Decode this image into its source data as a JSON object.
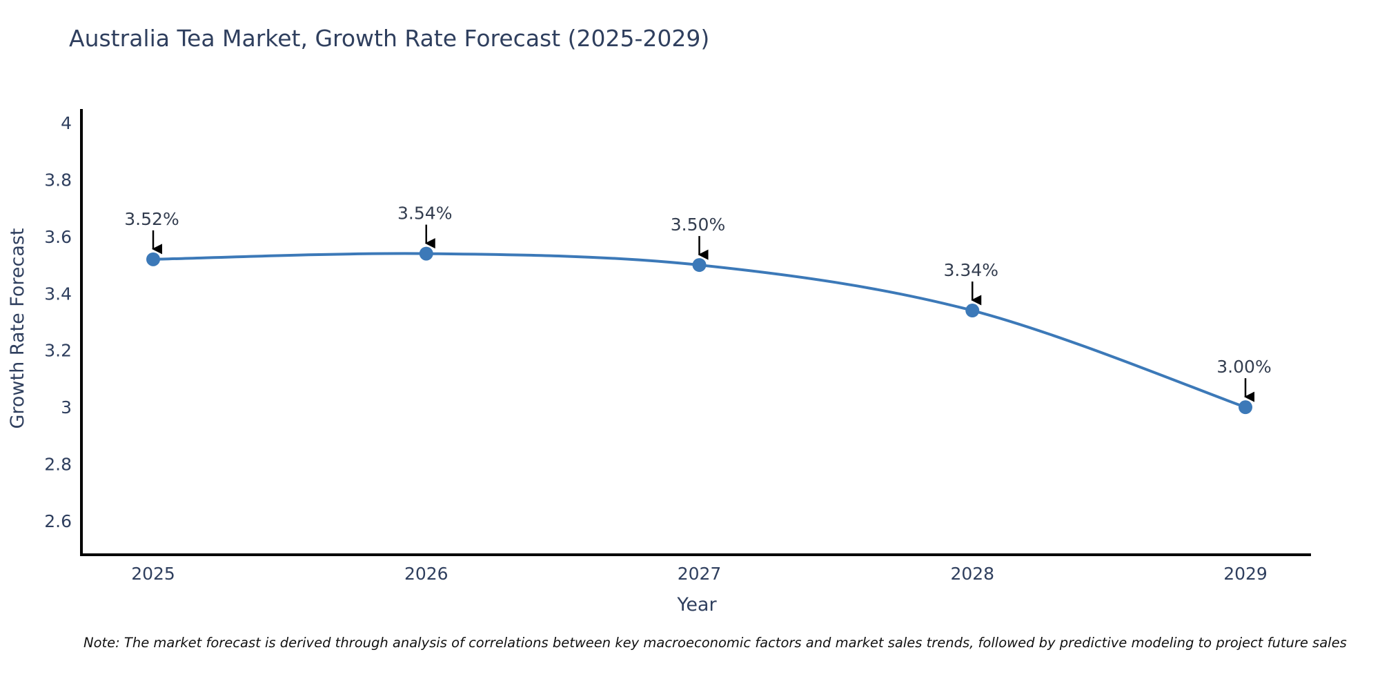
{
  "title": "Australia Tea Market, Growth Rate Forecast (2025-2029)",
  "note": "Note: The market forecast is derived through analysis of correlations between key macroeconomic factors and market sales trends, followed by predictive modeling to project future sales",
  "chart_data": {
    "type": "line",
    "title": "Australia Tea Market, Growth Rate Forecast (2025-2029)",
    "x": [
      2025,
      2026,
      2027,
      2028,
      2029
    ],
    "xtick_labels": [
      "2025",
      "2026",
      "2027",
      "2028",
      "2029"
    ],
    "values": [
      3.52,
      3.54,
      3.5,
      3.34,
      3.0
    ],
    "point_labels": [
      "3.52%",
      "3.54%",
      "3.50%",
      "3.34%",
      "3.00%"
    ],
    "xlabel": "Year",
    "ylabel": "Growth Rate Forecast",
    "yticks": [
      4,
      3.8,
      3.6,
      3.4,
      3.2,
      3,
      2.8,
      2.6
    ],
    "ytick_labels": [
      "4",
      "3.8",
      "3.6",
      "3.4",
      "3.2",
      "3",
      "2.8",
      "2.6"
    ],
    "ylim": [
      2.48,
      4.05
    ],
    "xlim": [
      2024.74,
      2029.24
    ],
    "grid": false,
    "legend": "none",
    "smooth": true,
    "line_color": "#3c79b8",
    "marker_color": "#3c79b8",
    "axis_color": "#000000",
    "label_color": "#2f3f5e",
    "annotation_color": "#333d4f",
    "arrow_color": "#000000"
  }
}
